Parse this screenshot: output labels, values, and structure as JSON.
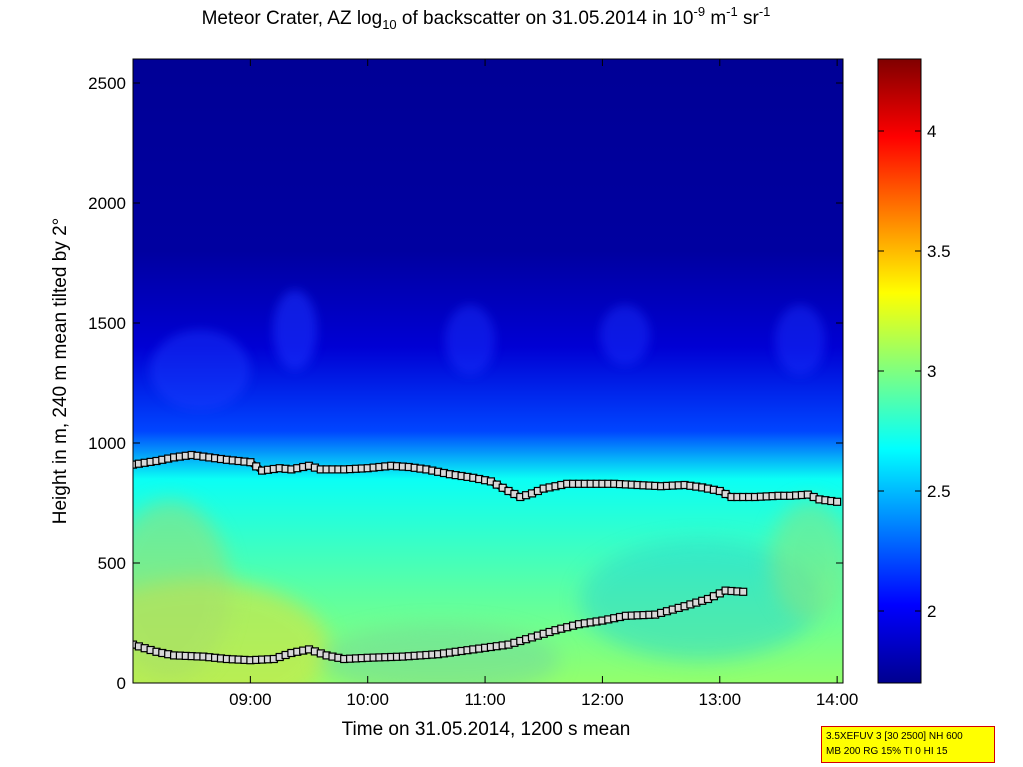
{
  "chart_data": {
    "type": "heatmap",
    "title": {
      "prefix": "Meteor Crater, AZ log",
      "log_sub": "10",
      "middle": " of backscatter on 31.05.2014 in 10",
      "exp1": "-9",
      "unit_m": " m",
      "exp2": "-1",
      "unit_sr": " sr",
      "exp3": "-1"
    },
    "xlabel": "Time on 31.05.2014, 1200 s mean",
    "ylabel": "Height in m, 240 m mean tilted by 2°",
    "xlim_hours": [
      8.0,
      14.05
    ],
    "ylim": [
      0,
      2600
    ],
    "x_ticks": [
      {
        "label": "09:00",
        "value": 9
      },
      {
        "label": "10:00",
        "value": 10
      },
      {
        "label": "11:00",
        "value": 11
      },
      {
        "label": "12:00",
        "value": 12
      },
      {
        "label": "13:00",
        "value": 13
      },
      {
        "label": "14:00",
        "value": 14
      }
    ],
    "y_ticks": [
      {
        "label": "0",
        "value": 0
      },
      {
        "label": "500",
        "value": 500
      },
      {
        "label": "1000",
        "value": 1000
      },
      {
        "label": "1500",
        "value": 1500
      },
      {
        "label": "2000",
        "value": 2000
      },
      {
        "label": "2500",
        "value": 2500
      }
    ],
    "colorbar": {
      "range": [
        1.7,
        4.3
      ],
      "ticks": [
        {
          "label": "2",
          "value": 2
        },
        {
          "label": "2.5",
          "value": 2.5
        },
        {
          "label": "3",
          "value": 3
        },
        {
          "label": "3.5",
          "value": 3.5
        },
        {
          "label": "4",
          "value": 4
        }
      ]
    },
    "field_description_levels": [
      {
        "height_m": 0,
        "value": 3.05
      },
      {
        "height_m": 400,
        "value": 2.9
      },
      {
        "height_m": 850,
        "value": 2.7
      },
      {
        "height_m": 1050,
        "value": 2.2
      },
      {
        "height_m": 1400,
        "value": 1.9
      },
      {
        "height_m": 1800,
        "value": 1.75
      },
      {
        "height_m": 2600,
        "value": 1.72
      }
    ],
    "series": [
      {
        "name": "upper layer height",
        "x": [
          8.0,
          8.2,
          8.35,
          8.5,
          8.65,
          8.8,
          9.0,
          9.1,
          9.25,
          9.35,
          9.5,
          9.6,
          9.8,
          10.0,
          10.2,
          10.35,
          10.5,
          10.7,
          10.9,
          11.05,
          11.2,
          11.3,
          11.4,
          11.5,
          11.7,
          11.9,
          12.1,
          12.3,
          12.5,
          12.7,
          12.85,
          13.0,
          13.1,
          13.3,
          13.5,
          13.6,
          13.75,
          13.85,
          14.0
        ],
        "y": [
          910,
          925,
          940,
          950,
          940,
          930,
          920,
          885,
          895,
          890,
          905,
          890,
          890,
          895,
          905,
          900,
          890,
          870,
          855,
          840,
          800,
          775,
          790,
          810,
          830,
          830,
          830,
          825,
          820,
          825,
          815,
          800,
          775,
          775,
          780,
          780,
          785,
          765,
          755
        ]
      },
      {
        "name": "lower layer height",
        "x": [
          8.0,
          8.1,
          8.2,
          8.35,
          8.6,
          8.8,
          9.0,
          9.2,
          9.35,
          9.5,
          9.65,
          9.8,
          10.0,
          10.3,
          10.6,
          10.9,
          11.2,
          11.4,
          11.6,
          11.8,
          12.0,
          12.2,
          12.45,
          12.7,
          12.9,
          13.05,
          13.2
        ],
        "y": [
          160,
          145,
          130,
          115,
          110,
          100,
          95,
          100,
          125,
          140,
          115,
          100,
          105,
          110,
          120,
          140,
          160,
          190,
          220,
          245,
          260,
          280,
          285,
          320,
          350,
          385,
          380
        ]
      }
    ]
  },
  "info_box": {
    "line1": "3.5XEFUV 3 [30 2500] NH 600",
    "line2": "MB 200 RG 15% TI 0 HI 15"
  },
  "colors": {
    "line": "#000000",
    "marker_face": "#d8d8d8",
    "info_bg": "#ffff00",
    "info_border": "#d40000"
  }
}
